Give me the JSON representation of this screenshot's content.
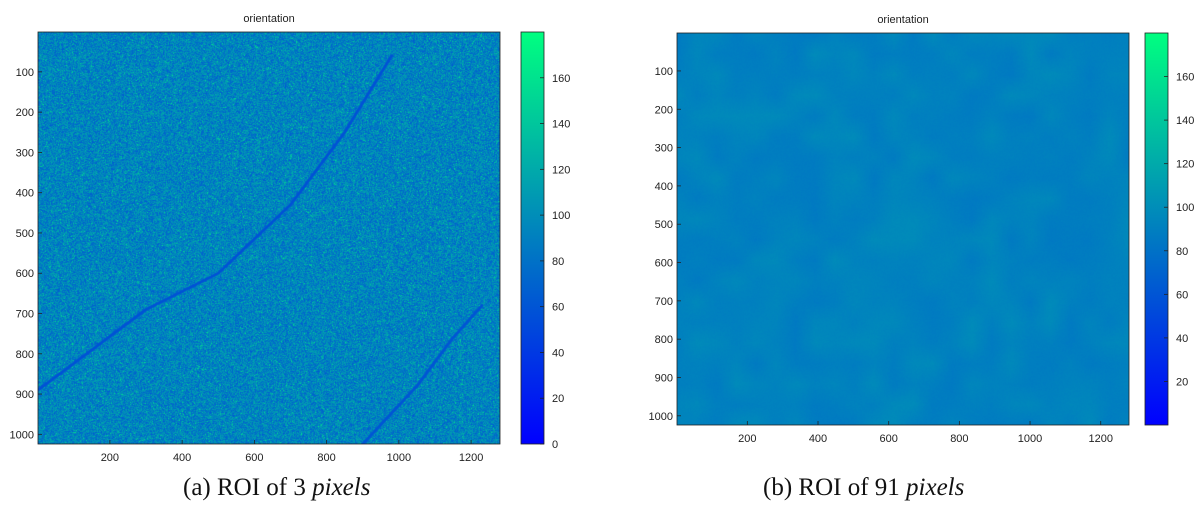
{
  "colors": {
    "cmap_low": "#0000ff",
    "cmap_high": "#00ff80",
    "axis_color": "#222222",
    "background": "#ffffff"
  },
  "chart_data": [
    {
      "type": "heatmap",
      "title": "orientation",
      "caption_text": "(a) ROI of 3",
      "caption_unit": "pixels",
      "xlim": [
        1,
        1280
      ],
      "ylim": [
        1024,
        1
      ],
      "xticks": [
        200,
        400,
        600,
        800,
        1000,
        1200
      ],
      "yticks": [
        100,
        200,
        300,
        400,
        500,
        600,
        700,
        800,
        900,
        1000
      ],
      "colorbar": {
        "range": [
          0,
          180
        ],
        "ticks": [
          0,
          20,
          40,
          60,
          80,
          100,
          120,
          140,
          160
        ]
      },
      "field": {
        "mean": 92,
        "noise_amplitude": 32,
        "smooth": false
      },
      "features": [
        {
          "kind": "streak",
          "x": [
            1,
            300,
            500,
            700,
            850,
            980
          ],
          "y": [
            890,
            690,
            600,
            430,
            250,
            60
          ],
          "value": 58
        },
        {
          "kind": "streak",
          "x": [
            900,
            1050,
            1150,
            1230
          ],
          "y": [
            1024,
            880,
            760,
            680
          ],
          "value": 60
        }
      ]
    },
    {
      "type": "heatmap",
      "title": "orientation",
      "caption_text": "(b) ROI of 91",
      "caption_unit": "pixels",
      "xlim": [
        1,
        1280
      ],
      "ylim": [
        1024,
        1
      ],
      "xticks": [
        200,
        400,
        600,
        800,
        1000,
        1200
      ],
      "yticks": [
        100,
        200,
        300,
        400,
        500,
        600,
        700,
        800,
        900,
        1000
      ],
      "colorbar": {
        "range": [
          0,
          180
        ],
        "ticks": [
          20,
          40,
          60,
          80,
          100,
          120,
          140,
          160
        ]
      },
      "field": {
        "mean": 92,
        "noise_amplitude": 6,
        "smooth": true
      },
      "features": []
    }
  ]
}
